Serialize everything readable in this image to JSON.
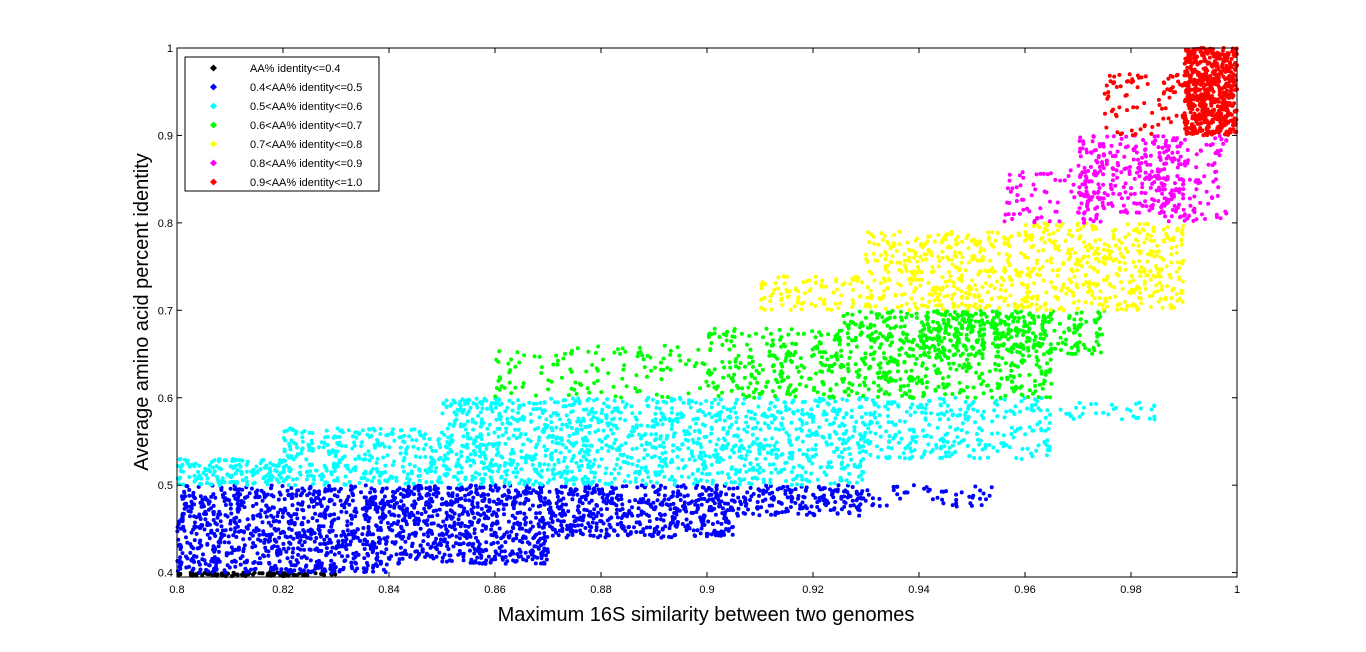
{
  "chart_data": {
    "type": "scatter",
    "title": "",
    "xlabel": "Maximum 16S similarity between two genomes",
    "ylabel": "Average amino acid percent identity",
    "xlim": [
      0.8,
      1.0
    ],
    "ylim": [
      0.395,
      1.0
    ],
    "x_ticks": [
      "0.8",
      "0.82",
      "0.84",
      "0.86",
      "0.88",
      "0.9",
      "0.92",
      "0.94",
      "0.96",
      "0.98",
      "1"
    ],
    "y_ticks": [
      "0.4",
      "0.5",
      "0.6",
      "0.7",
      "0.8",
      "0.9",
      "1"
    ],
    "grid": false,
    "legend_position": "top-left",
    "series": [
      {
        "name": "AA% identity<=0.4",
        "color": "#000000",
        "regions": [
          {
            "x": [
              0.8,
              0.83
            ],
            "y": [
              0.396,
              0.4
            ],
            "n": 90
          }
        ]
      },
      {
        "name": "0.4<AA% identity<=0.5",
        "color": "#0000ff",
        "regions": [
          {
            "x": [
              0.8,
              0.84
            ],
            "y": [
              0.4,
              0.5
            ],
            "n": 900
          },
          {
            "x": [
              0.84,
              0.87
            ],
            "y": [
              0.41,
              0.5
            ],
            "n": 650
          },
          {
            "x": [
              0.87,
              0.905
            ],
            "y": [
              0.44,
              0.5
            ],
            "n": 500
          },
          {
            "x": [
              0.905,
              0.93
            ],
            "y": [
              0.465,
              0.5
            ],
            "n": 160
          },
          {
            "x": [
              0.92,
              0.955
            ],
            "y": [
              0.475,
              0.5
            ],
            "n": 70
          }
        ]
      },
      {
        "name": "0.5<AA% identity<=0.6",
        "color": "#00ffff",
        "regions": [
          {
            "x": [
              0.8,
              0.82
            ],
            "y": [
              0.5,
              0.53
            ],
            "n": 150
          },
          {
            "x": [
              0.82,
              0.85
            ],
            "y": [
              0.5,
              0.565
            ],
            "n": 320
          },
          {
            "x": [
              0.85,
              0.88
            ],
            "y": [
              0.5,
              0.6
            ],
            "n": 550
          },
          {
            "x": [
              0.88,
              0.93
            ],
            "y": [
              0.5,
              0.6
            ],
            "n": 750
          },
          {
            "x": [
              0.93,
              0.965
            ],
            "y": [
              0.53,
              0.6
            ],
            "n": 280
          },
          {
            "x": [
              0.965,
              0.985
            ],
            "y": [
              0.575,
              0.595
            ],
            "n": 35
          }
        ]
      },
      {
        "name": "0.6<AA% identity<=0.7",
        "color": "#00ff00",
        "regions": [
          {
            "x": [
              0.86,
              0.9
            ],
            "y": [
              0.6,
              0.66
            ],
            "n": 120
          },
          {
            "x": [
              0.9,
              0.925
            ],
            "y": [
              0.6,
              0.68
            ],
            "n": 220
          },
          {
            "x": [
              0.925,
              0.965
            ],
            "y": [
              0.6,
              0.7
            ],
            "n": 550
          },
          {
            "x": [
              0.94,
              0.975
            ],
            "y": [
              0.65,
              0.7
            ],
            "n": 250
          }
        ]
      },
      {
        "name": "0.7<AA% identity<=0.8",
        "color": "#ffff00",
        "regions": [
          {
            "x": [
              0.91,
              0.93
            ],
            "y": [
              0.7,
              0.74
            ],
            "n": 90
          },
          {
            "x": [
              0.93,
              0.96
            ],
            "y": [
              0.7,
              0.79
            ],
            "n": 380
          },
          {
            "x": [
              0.96,
              0.99
            ],
            "y": [
              0.7,
              0.8
            ],
            "n": 420
          }
        ]
      },
      {
        "name": "0.8<AA% identity<=0.9",
        "color": "#ff00ff",
        "regions": [
          {
            "x": [
              0.955,
              0.975
            ],
            "y": [
              0.8,
              0.86
            ],
            "n": 90
          },
          {
            "x": [
              0.97,
              0.99
            ],
            "y": [
              0.81,
              0.9
            ],
            "n": 260
          },
          {
            "x": [
              0.985,
              0.998
            ],
            "y": [
              0.8,
              0.9
            ],
            "n": 110
          }
        ]
      },
      {
        "name": "0.9<AA% identity<=1.0",
        "color": "#ff0000",
        "regions": [
          {
            "x": [
              0.975,
              0.99
            ],
            "y": [
              0.9,
              0.97
            ],
            "n": 80
          },
          {
            "x": [
              0.99,
              1.0
            ],
            "y": [
              0.9,
              1.0
            ],
            "n": 650
          }
        ]
      }
    ]
  }
}
